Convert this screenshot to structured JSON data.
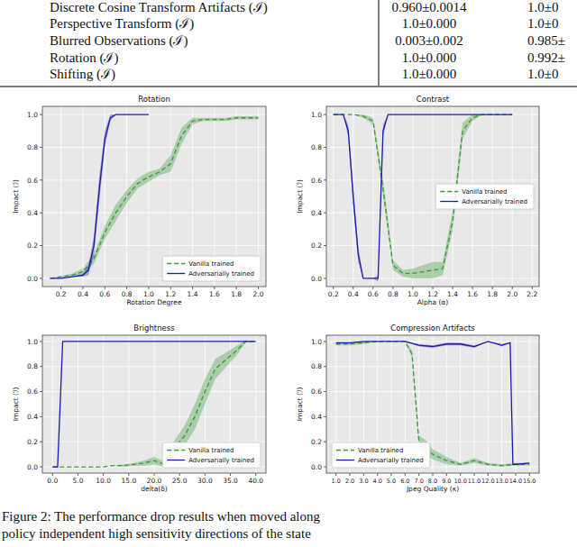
{
  "table": {
    "rows": [
      [
        "Discrete Cosine Transform Artifacts (ℐ)",
        "0.960±0.0014",
        "1.0±0"
      ],
      [
        "Perspective Transform (ℐ)",
        "1.0±0.000",
        "1.0±0"
      ],
      [
        "Blurred Observations (ℐ)",
        "0.003±0.002",
        "0.985±"
      ],
      [
        "Rotation (ℐ)",
        "1.0±0.000",
        "0.992±"
      ],
      [
        "Shifting (ℐ)",
        "1.0±0.000",
        "1.0±0"
      ]
    ]
  },
  "chart_data": [
    {
      "type": "line",
      "title": "Rotation",
      "x_label": "Rotation Degree",
      "y_label": "Impact (ℐ)",
      "xlim": [
        0.03,
        2.07
      ],
      "ylim": [
        -0.05,
        1.05
      ],
      "xticks": [
        0.2,
        0.4,
        0.6,
        0.8,
        {
          "value": 1,
          "label": "1.0"
        },
        1.2,
        1.4,
        1.6,
        1.8,
        {
          "value": 2,
          "label": "2.0"
        }
      ],
      "yticks": [
        {
          "value": 0,
          "label": "0.0"
        },
        0.2,
        0.4,
        0.6,
        0.8,
        {
          "value": 1,
          "label": "1.0"
        }
      ],
      "grid": true,
      "legend": "lower right",
      "series": [
        {
          "name": "Vanilla trained",
          "color": "#3a9a3a",
          "line_style": "dashed",
          "x": [
            0.1,
            0.2,
            0.3,
            0.4,
            0.5,
            0.6,
            0.7,
            0.8,
            0.9,
            1.0,
            1.1,
            1.2,
            1.3,
            1.4,
            1.5,
            1.6,
            1.7,
            1.8,
            1.9,
            2.0
          ],
          "values": [
            0.0,
            0.01,
            0.02,
            0.04,
            0.12,
            0.28,
            0.4,
            0.5,
            0.58,
            0.62,
            0.65,
            0.7,
            0.87,
            0.96,
            0.97,
            0.97,
            0.97,
            0.98,
            0.98,
            0.98
          ],
          "error": [
            0,
            0.005,
            0.01,
            0.02,
            0.03,
            0.04,
            0.05,
            0.04,
            0.03,
            0.03,
            0.02,
            0.05,
            0.05,
            0.02,
            0.01,
            0.01,
            0.01,
            0.01,
            0.01,
            0.01
          ]
        },
        {
          "name": "Adversarially trained",
          "color": "#1c1ca8",
          "line_style": "solid",
          "x": [
            0.1,
            0.2,
            0.3,
            0.4,
            0.45,
            0.5,
            0.55,
            0.6,
            0.65,
            0.7,
            0.8,
            0.9,
            1.0
          ],
          "values": [
            0.0,
            0.0,
            0.01,
            0.02,
            0.05,
            0.2,
            0.55,
            0.85,
            0.98,
            1.0,
            1.0,
            1.0,
            1.0
          ],
          "error": [
            0,
            0,
            0,
            0.01,
            0.03,
            0.06,
            0.08,
            0.05,
            0.02,
            0,
            0,
            0,
            0
          ]
        }
      ]
    },
    {
      "type": "line",
      "title": "Contrast",
      "x_label": "Alpha (α)",
      "y_label": "Impact (ℐ)",
      "xlim": [
        0.13,
        2.27
      ],
      "ylim": [
        -0.05,
        1.05
      ],
      "xticks": [
        0.2,
        0.4,
        0.6,
        0.8,
        {
          "value": 1,
          "label": "1.0"
        },
        1.2,
        1.4,
        1.6,
        1.8,
        {
          "value": 2,
          "label": "2.0"
        },
        2.2
      ],
      "yticks": [
        {
          "value": 0,
          "label": "0.0"
        },
        0.2,
        0.4,
        0.6,
        0.8,
        {
          "value": 1,
          "label": "1.0"
        }
      ],
      "grid": true,
      "legend": "center right",
      "series": [
        {
          "name": "Vanilla trained",
          "color": "#3a9a3a",
          "line_style": "dashed",
          "x": [
            0.2,
            0.3,
            0.4,
            0.5,
            0.6,
            0.7,
            0.8,
            0.9,
            1.0,
            1.1,
            1.2,
            1.3,
            1.4,
            1.5,
            1.6,
            1.7,
            1.8,
            1.9,
            2.0
          ],
          "values": [
            1.0,
            1.0,
            1.0,
            0.99,
            0.96,
            0.55,
            0.08,
            0.03,
            0.03,
            0.04,
            0.05,
            0.06,
            0.35,
            0.9,
            0.98,
            1.0,
            1.0,
            1.0,
            1.0
          ],
          "error": [
            0,
            0,
            0,
            0.01,
            0.02,
            0.05,
            0.03,
            0.02,
            0.03,
            0.04,
            0.05,
            0.04,
            0.06,
            0.05,
            0.02,
            0,
            0,
            0,
            0
          ]
        },
        {
          "name": "Adversarially trained",
          "color": "#1c1ca8",
          "line_style": "solid",
          "x": [
            0.2,
            0.3,
            0.35,
            0.4,
            0.45,
            0.5,
            0.6,
            0.65,
            0.7,
            0.75,
            0.8,
            1.0,
            1.2,
            1.4,
            1.6,
            1.8,
            2.0
          ],
          "values": [
            1.0,
            1.0,
            0.9,
            0.5,
            0.15,
            0.0,
            0.0,
            0.0,
            0.9,
            1.0,
            1.0,
            1.0,
            1.0,
            1.0,
            1.0,
            1.0,
            1.0
          ],
          "error": [
            0,
            0,
            0.04,
            0.06,
            0.05,
            0,
            0,
            0.02,
            0.04,
            0,
            0,
            0,
            0,
            0,
            0,
            0,
            0
          ]
        }
      ]
    },
    {
      "type": "line",
      "title": "Brightness",
      "x_label": "delta(δ)",
      "y_label": "Impact (ℐ)",
      "xlim": [
        -2,
        42
      ],
      "ylim": [
        -0.05,
        1.05
      ],
      "xticks": [
        {
          "value": 0,
          "label": "0.0"
        },
        {
          "value": 5,
          "label": "5.0"
        },
        {
          "value": 10,
          "label": "10.0"
        },
        {
          "value": 15,
          "label": "15.0"
        },
        {
          "value": 20,
          "label": "20.0"
        },
        {
          "value": 25,
          "label": "25.0"
        },
        {
          "value": 30,
          "label": "30.0"
        },
        {
          "value": 35,
          "label": "35.0"
        },
        {
          "value": 40,
          "label": "40.0"
        }
      ],
      "yticks": [
        {
          "value": 0,
          "label": "0.0"
        },
        0.2,
        0.4,
        0.6,
        0.8,
        {
          "value": 1,
          "label": "1.0"
        }
      ],
      "grid": true,
      "legend": "lower right",
      "series": [
        {
          "name": "Vanilla trained",
          "color": "#3a9a3a",
          "line_style": "dashed",
          "x": [
            0,
            2,
            4,
            6,
            8,
            10,
            12,
            14,
            16,
            18,
            20,
            22,
            24,
            26,
            28,
            30,
            32,
            34,
            36,
            38,
            40
          ],
          "values": [
            0.0,
            0.0,
            0.0,
            0.0,
            0.0,
            0.0,
            0.01,
            0.01,
            0.02,
            0.03,
            0.05,
            0.02,
            0.15,
            0.25,
            0.4,
            0.6,
            0.78,
            0.85,
            0.92,
            1.0,
            1.0
          ],
          "error": [
            0,
            0,
            0,
            0,
            0,
            0,
            0,
            0.01,
            0.01,
            0.02,
            0.03,
            0.02,
            0.06,
            0.08,
            0.1,
            0.1,
            0.08,
            0.06,
            0.04,
            0.01,
            0
          ]
        },
        {
          "name": "Adversarially trained",
          "color": "#1c1ca8",
          "line_style": "solid",
          "x": [
            0,
            1,
            2,
            4,
            8,
            12,
            16,
            20,
            24,
            28,
            32,
            36,
            40
          ],
          "values": [
            0.0,
            0.0,
            1.0,
            1.0,
            1.0,
            1.0,
            1.0,
            1.0,
            1.0,
            1.0,
            1.0,
            1.0,
            1.0
          ],
          "error": [
            0,
            0,
            0,
            0,
            0,
            0,
            0,
            0,
            0,
            0,
            0,
            0,
            0
          ]
        }
      ]
    },
    {
      "type": "line",
      "title": "Compression Artifacts",
      "x_label": "Jpeg Quality (κ)",
      "y_label": "Impact (ℐ)",
      "xlim": [
        0.3,
        15.7
      ],
      "ylim": [
        -0.05,
        1.05
      ],
      "xticks": [
        {
          "value": 1,
          "label": "1.0"
        },
        {
          "value": 2,
          "label": "2.0"
        },
        {
          "value": 3,
          "label": "3.0"
        },
        {
          "value": 4,
          "label": "4.0"
        },
        {
          "value": 5,
          "label": "5.0"
        },
        {
          "value": 6,
          "label": "6.0"
        },
        {
          "value": 7,
          "label": "7.0"
        },
        {
          "value": 8,
          "label": "8.0"
        },
        {
          "value": 9,
          "label": "9.0"
        },
        {
          "value": 10,
          "label": "10.0"
        },
        {
          "value": 11,
          "label": "11.0"
        },
        {
          "value": 12,
          "label": "12.0"
        },
        {
          "value": 13,
          "label": "13.0"
        },
        {
          "value": 14,
          "label": "14.0"
        },
        {
          "value": 15,
          "label": "15.0"
        }
      ],
      "yticks": [
        {
          "value": 0,
          "label": "0.0"
        },
        0.2,
        0.4,
        0.6,
        0.8,
        {
          "value": 1,
          "label": "1.0"
        }
      ],
      "grid": true,
      "legend": "lower left",
      "series": [
        {
          "name": "Vanilla trained",
          "color": "#3a9a3a",
          "line_style": "dashed",
          "x": [
            1,
            2,
            3,
            4,
            5,
            6,
            6.5,
            7,
            7.5,
            8,
            9,
            10,
            11,
            12,
            13,
            14,
            15
          ],
          "values": [
            0.98,
            0.98,
            0.99,
            1.0,
            1.0,
            1.0,
            0.9,
            0.2,
            0.15,
            0.1,
            0.05,
            0.02,
            0.05,
            0.02,
            0.01,
            0.02,
            0.02
          ],
          "error": [
            0.01,
            0.01,
            0.01,
            0,
            0,
            0,
            0.03,
            0.05,
            0.06,
            0.04,
            0.03,
            0.01,
            0.02,
            0.01,
            0.01,
            0.01,
            0.01
          ]
        },
        {
          "name": "Adversarially trained",
          "color": "#1c1ca8",
          "line_style": "solid",
          "x": [
            1,
            2,
            3,
            4,
            5,
            6,
            7,
            8,
            9,
            10,
            11,
            12,
            13,
            13.6,
            13.8,
            14,
            15
          ],
          "values": [
            0.99,
            0.99,
            1.0,
            1.0,
            1.0,
            1.0,
            0.97,
            0.96,
            0.98,
            0.98,
            0.96,
            1.0,
            0.97,
            0.99,
            0.02,
            0.02,
            0.03
          ],
          "error": [
            0,
            0,
            0,
            0,
            0,
            0,
            0.01,
            0.01,
            0.01,
            0.01,
            0.01,
            0,
            0.01,
            0,
            0,
            0,
            0
          ]
        }
      ]
    }
  ],
  "caption": [
    "Figure 2: The performance drop results when moved along",
    "policy independent high sensitivity directions of the state"
  ]
}
